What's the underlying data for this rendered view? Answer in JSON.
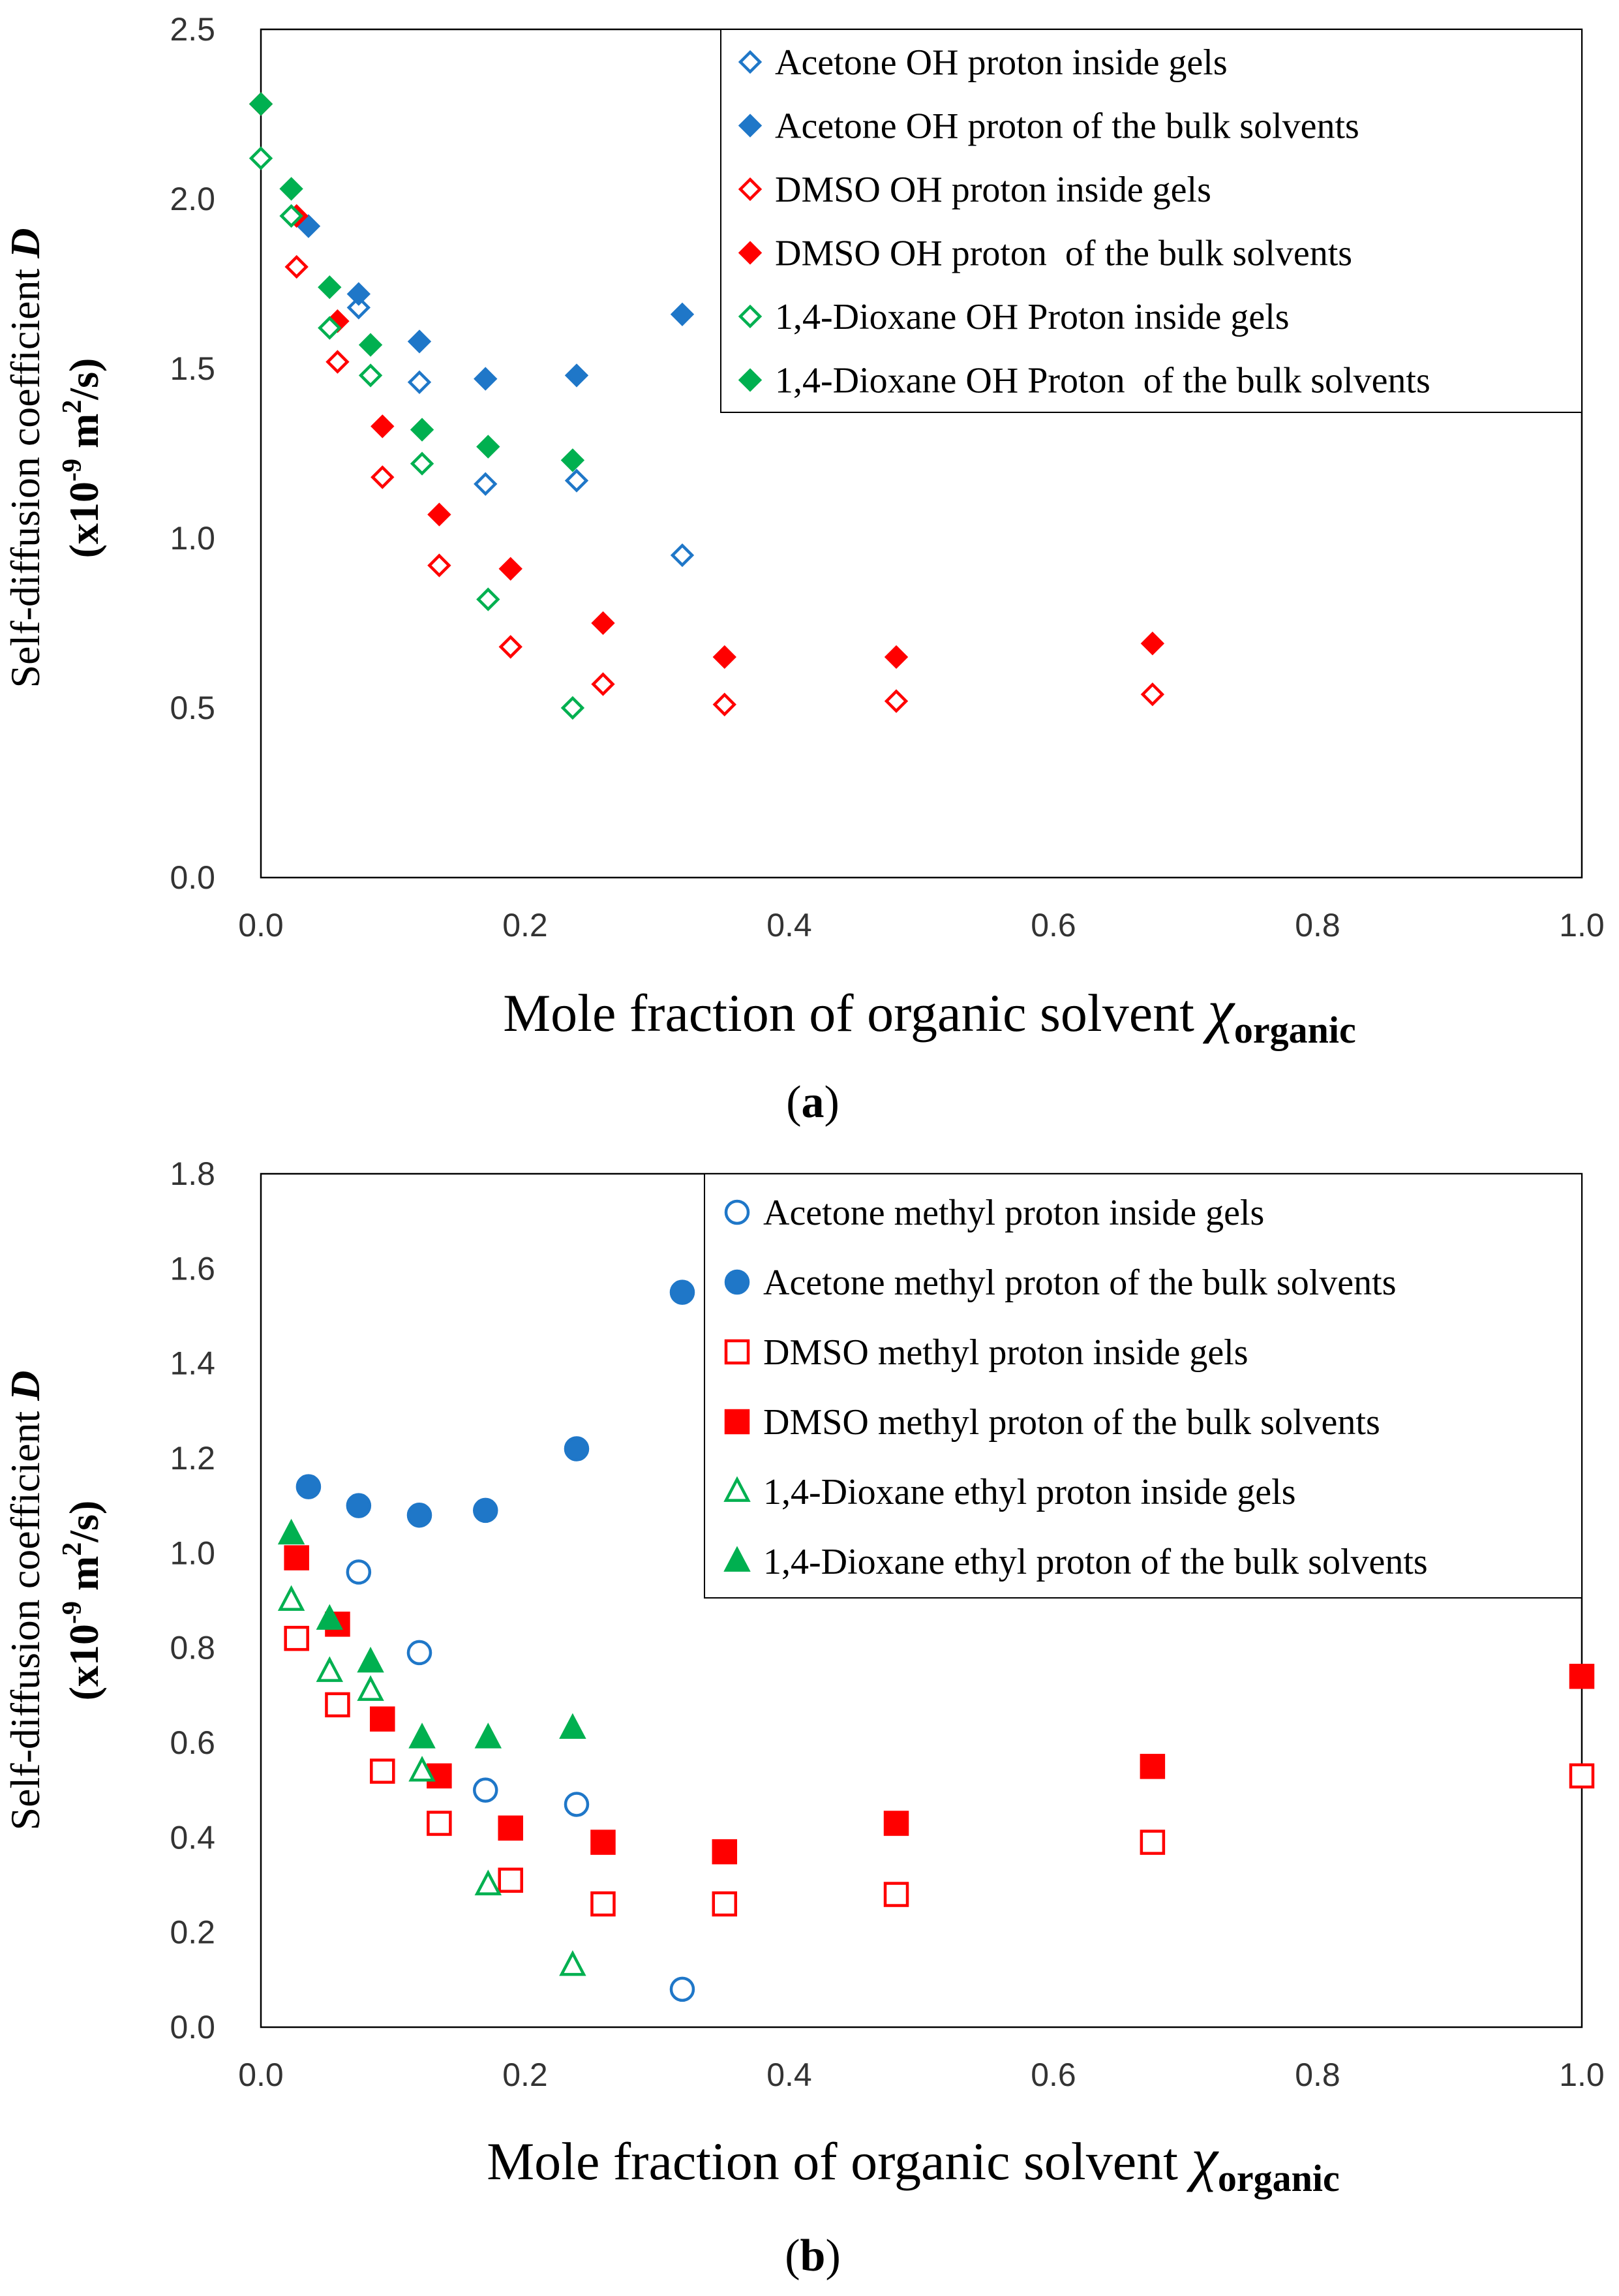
{
  "chart_data": [
    {
      "type": "scatter",
      "panel_label": "a",
      "xlabel": "Mole fraction of organic solvent",
      "xlabel_symbol": "χ",
      "xlabel_subscript": "organic",
      "ylabel_line1": "Self-diffusion coefficient",
      "ylabel_symbol": "D",
      "ylabel_line2_prefix": "(x10",
      "ylabel_line2_exp": "-9",
      "ylabel_line2_mid": " m",
      "ylabel_line2_exp2": "2",
      "ylabel_line2_suffix": "/s)",
      "xlim": [
        0,
        1.0
      ],
      "ylim": [
        0,
        2.5
      ],
      "xticks": [
        "0.0",
        "0.2",
        "0.4",
        "0.6",
        "0.8",
        "1.0"
      ],
      "yticks": [
        "0.0",
        "0.5",
        "1.0",
        "1.5",
        "2.0",
        "2.5"
      ],
      "legend_position": "top-right",
      "series": [
        {
          "name": "Acetone OH proton inside gels",
          "marker": "diamond",
          "filled": false,
          "color": "#1f77c8",
          "x": [
            0.036,
            0.074,
            0.12,
            0.17,
            0.239,
            0.319
          ],
          "y": [
            1.92,
            1.68,
            1.46,
            1.16,
            1.17,
            0.95
          ]
        },
        {
          "name": "Acetone OH proton of the bulk solvents",
          "marker": "diamond",
          "filled": true,
          "color": "#1f77c8",
          "x": [
            0.036,
            0.074,
            0.12,
            0.17,
            0.239,
            0.319
          ],
          "y": [
            1.92,
            1.72,
            1.58,
            1.47,
            1.48,
            1.66
          ]
        },
        {
          "name": "DMSO OH proton inside gels",
          "marker": "diamond",
          "filled": false,
          "color": "#ff0000",
          "x": [
            0.027,
            0.058,
            0.092,
            0.135,
            0.189,
            0.259,
            0.351,
            0.481,
            0.675
          ],
          "y": [
            1.8,
            1.52,
            1.18,
            0.92,
            0.68,
            0.57,
            0.51,
            0.52,
            0.54
          ]
        },
        {
          "name": "DMSO OH proton  of the bulk solvents",
          "marker": "diamond",
          "filled": true,
          "color": "#ff0000",
          "x": [
            0.0,
            0.027,
            0.058,
            0.092,
            0.135,
            0.189,
            0.259,
            0.351,
            0.481,
            0.675
          ],
          "y": [
            2.28,
            1.95,
            1.64,
            1.33,
            1.07,
            0.91,
            0.75,
            0.65,
            0.65,
            0.69
          ]
        },
        {
          "name": "1,4-Dioxane OH Proton inside gels",
          "marker": "diamond",
          "filled": false,
          "color": "#00b050",
          "x": [
            0.0,
            0.023,
            0.052,
            0.083,
            0.122,
            0.172,
            0.236
          ],
          "y": [
            2.12,
            1.95,
            1.62,
            1.48,
            1.22,
            0.82,
            0.5
          ]
        },
        {
          "name": "1,4-Dioxane OH Proton  of the bulk solvents",
          "marker": "diamond",
          "filled": true,
          "color": "#00b050",
          "x": [
            0.0,
            0.023,
            0.052,
            0.083,
            0.122,
            0.172,
            0.236
          ],
          "y": [
            2.28,
            2.03,
            1.74,
            1.57,
            1.32,
            1.27,
            1.23
          ]
        }
      ]
    },
    {
      "type": "scatter",
      "panel_label": "b",
      "xlabel": "Mole fraction of organic solvent",
      "xlabel_symbol": "χ",
      "xlabel_subscript": "organic",
      "ylabel_line1": "Self-diffusion coefficient",
      "ylabel_symbol": "D",
      "ylabel_line2_prefix": "(x10",
      "ylabel_line2_exp": "-9",
      "ylabel_line2_mid": " m",
      "ylabel_line2_exp2": "2",
      "ylabel_line2_suffix": "/s)",
      "xlim": [
        0,
        1.0
      ],
      "ylim": [
        0,
        1.8
      ],
      "xticks": [
        "0.0",
        "0.2",
        "0.4",
        "0.6",
        "0.8",
        "1.0"
      ],
      "yticks": [
        "0.0",
        "0.2",
        "0.4",
        "0.6",
        "0.8",
        "1.0",
        "1.2",
        "1.4",
        "1.6",
        "1.8"
      ],
      "legend_position": "top-right",
      "series": [
        {
          "name": "Acetone methyl proton inside gels",
          "marker": "circle",
          "filled": false,
          "color": "#1f77c8",
          "x": [
            0.074,
            0.12,
            0.17,
            0.239,
            0.319
          ],
          "y": [
            0.96,
            0.79,
            0.5,
            0.47,
            0.08
          ]
        },
        {
          "name": "Acetone methyl proton of the bulk solvents",
          "marker": "circle",
          "filled": true,
          "color": "#1f77c8",
          "x": [
            0.036,
            0.074,
            0.12,
            0.17,
            0.239,
            0.319
          ],
          "y": [
            1.14,
            1.1,
            1.08,
            1.09,
            1.22,
            1.55
          ]
        },
        {
          "name": "DMSO methyl proton inside gels",
          "marker": "square",
          "filled": false,
          "color": "#ff0000",
          "x": [
            0.027,
            0.058,
            0.092,
            0.135,
            0.189,
            0.259,
            0.351,
            0.481,
            0.675,
            1.0
          ],
          "y": [
            0.82,
            0.68,
            0.54,
            0.43,
            0.31,
            0.26,
            0.26,
            0.28,
            0.39,
            0.53
          ]
        },
        {
          "name": "DMSO methyl proton of the bulk solvents",
          "marker": "square",
          "filled": true,
          "color": "#ff0000",
          "x": [
            0.027,
            0.058,
            0.092,
            0.135,
            0.189,
            0.259,
            0.351,
            0.481,
            0.675,
            1.0
          ],
          "y": [
            0.99,
            0.85,
            0.65,
            0.53,
            0.42,
            0.39,
            0.37,
            0.43,
            0.55,
            0.74
          ]
        },
        {
          "name": "1,4-Dioxane ethyl proton inside gels",
          "marker": "triangle",
          "filled": false,
          "color": "#00b050",
          "x": [
            0.023,
            0.052,
            0.083,
            0.122,
            0.172,
            0.236
          ],
          "y": [
            0.9,
            0.75,
            0.71,
            0.54,
            0.3,
            0.13
          ]
        },
        {
          "name": "1,4-Dioxane ethyl proton of the bulk solvents",
          "marker": "triangle",
          "filled": true,
          "color": "#00b050",
          "x": [
            0.023,
            0.052,
            0.083,
            0.122,
            0.172,
            0.236
          ],
          "y": [
            1.04,
            0.86,
            0.77,
            0.61,
            0.61,
            0.63
          ]
        }
      ]
    }
  ]
}
